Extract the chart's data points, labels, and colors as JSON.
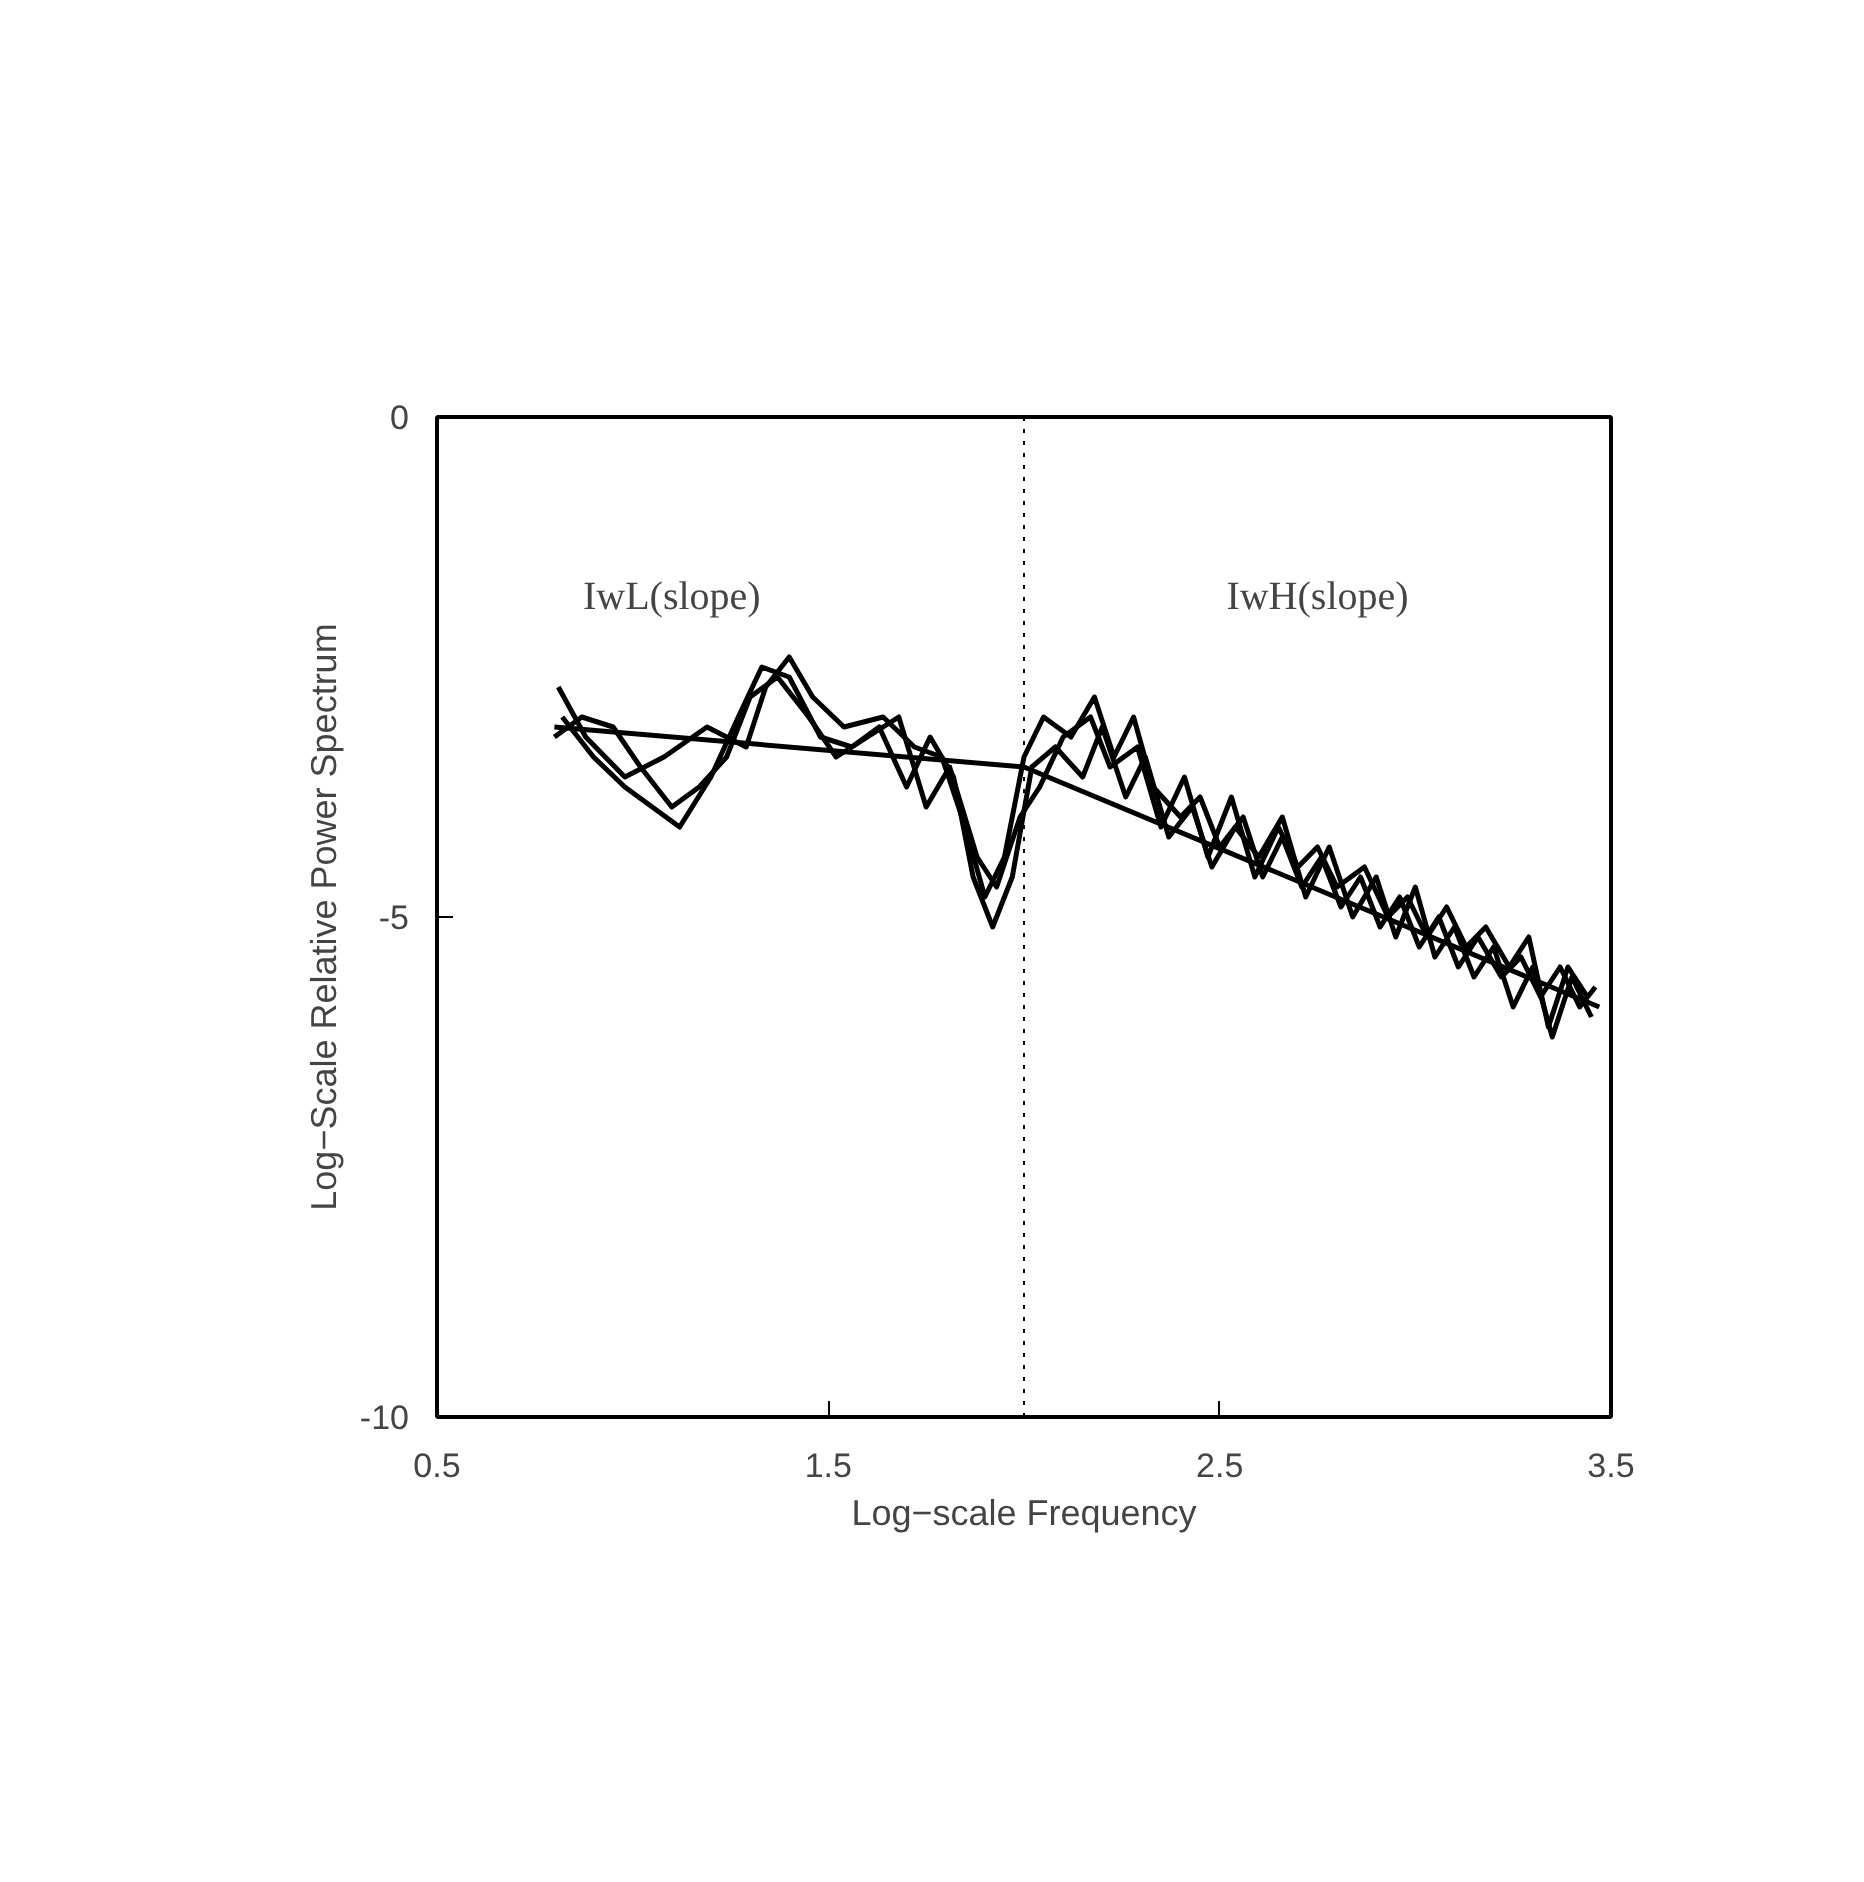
{
  "chart_data": {
    "type": "line",
    "xlabel": "Log−scale Frequency",
    "ylabel": "Log−Scale Relative Power Spectrum",
    "xlim": [
      0.5,
      3.5
    ],
    "ylim": [
      -10,
      0
    ],
    "xticks": [
      0.5,
      1.5,
      2.5,
      3.5
    ],
    "yticks": [
      0,
      -5,
      -10
    ],
    "grid": false,
    "marker": "none",
    "line_style": "solid",
    "series": [
      {
        "color": "#000000",
        "x": [
          0.81,
          0.88,
          0.98,
          1.08,
          1.19,
          1.29,
          1.34,
          1.4,
          1.46,
          1.54,
          1.64,
          1.72,
          1.79,
          1.85,
          1.9,
          1.95,
          2.0,
          2.05,
          2.12,
          2.18,
          2.23,
          2.28,
          2.33,
          2.4,
          2.45,
          2.5,
          2.56,
          2.61,
          2.66,
          2.71,
          2.76,
          2.81,
          2.86,
          2.91,
          2.96,
          3.01,
          3.06,
          3.11,
          3.16,
          3.22,
          3.27,
          3.32,
          3.37,
          3.42,
          3.46
        ],
        "values": [
          -2.7,
          -3.2,
          -3.6,
          -3.4,
          -3.1,
          -3.3,
          -2.7,
          -2.4,
          -2.8,
          -3.1,
          -3.0,
          -3.3,
          -3.4,
          -4.1,
          -4.8,
          -4.4,
          -3.4,
          -3.0,
          -3.2,
          -2.8,
          -3.4,
          -3.0,
          -3.7,
          -4.0,
          -3.8,
          -4.3,
          -4.0,
          -4.6,
          -4.2,
          -4.7,
          -4.4,
          -4.9,
          -4.6,
          -5.1,
          -4.8,
          -5.3,
          -5.0,
          -5.5,
          -5.2,
          -5.6,
          -5.4,
          -5.8,
          -5.5,
          -5.9,
          -5.7
        ]
      },
      {
        "color": "#000000",
        "x": [
          0.82,
          0.9,
          0.98,
          1.05,
          1.12,
          1.2,
          1.27,
          1.33,
          1.4,
          1.48,
          1.56,
          1.63,
          1.7,
          1.76,
          1.82,
          1.87,
          1.92,
          1.97,
          2.02,
          2.08,
          2.15,
          2.2,
          2.26,
          2.31,
          2.37,
          2.43,
          2.48,
          2.54,
          2.6,
          2.66,
          2.72,
          2.78,
          2.84,
          2.9,
          2.95,
          3.0,
          3.05,
          3.1,
          3.15,
          3.2,
          3.25,
          3.3,
          3.35,
          3.4,
          3.45
        ],
        "values": [
          -3.0,
          -3.4,
          -3.7,
          -3.9,
          -4.1,
          -3.6,
          -3.0,
          -2.5,
          -2.6,
          -3.2,
          -3.3,
          -3.1,
          -3.7,
          -3.2,
          -3.6,
          -4.6,
          -5.1,
          -4.6,
          -3.5,
          -3.3,
          -3.6,
          -3.1,
          -3.8,
          -3.4,
          -4.2,
          -3.9,
          -4.5,
          -4.1,
          -4.4,
          -4.0,
          -4.8,
          -4.3,
          -5.0,
          -4.6,
          -5.2,
          -4.7,
          -5.4,
          -5.1,
          -5.6,
          -5.3,
          -5.9,
          -5.5,
          -6.2,
          -5.6,
          -6.0
        ]
      },
      {
        "color": "#000000",
        "x": [
          0.8,
          0.87,
          0.95,
          1.02,
          1.1,
          1.17,
          1.24,
          1.3,
          1.37,
          1.45,
          1.52,
          1.6,
          1.68,
          1.75,
          1.81,
          1.88,
          1.93,
          1.99,
          2.04,
          2.1,
          2.17,
          2.22,
          2.29,
          2.35,
          2.41,
          2.47,
          2.53,
          2.59,
          2.65,
          2.7,
          2.75,
          2.8,
          2.87,
          2.93,
          2.98,
          3.03,
          3.08,
          3.13,
          3.18,
          3.24,
          3.29,
          3.34,
          3.39,
          3.44
        ],
        "values": [
          -3.2,
          -3.0,
          -3.1,
          -3.5,
          -3.9,
          -3.7,
          -3.4,
          -2.8,
          -2.6,
          -3.0,
          -3.4,
          -3.2,
          -3.0,
          -3.9,
          -3.5,
          -4.4,
          -4.7,
          -4.0,
          -3.7,
          -3.2,
          -3.0,
          -3.5,
          -3.3,
          -4.1,
          -3.6,
          -4.4,
          -3.8,
          -4.6,
          -4.1,
          -4.5,
          -4.3,
          -4.7,
          -4.5,
          -5.0,
          -4.8,
          -5.2,
          -4.9,
          -5.3,
          -5.1,
          -5.5,
          -5.2,
          -6.1,
          -5.5,
          -5.8
        ]
      },
      {
        "color": "#000000",
        "x": [
          0.8,
          2.0,
          3.47
        ],
        "values": [
          -3.1,
          -3.5,
          -5.9
        ]
      }
    ],
    "ref_lines": [
      {
        "axis": "x",
        "value": 2.0,
        "line_style": "dotted",
        "color": "#000000"
      }
    ],
    "annotations": [
      "IwL(slope)",
      "IwH(slope)"
    ]
  }
}
